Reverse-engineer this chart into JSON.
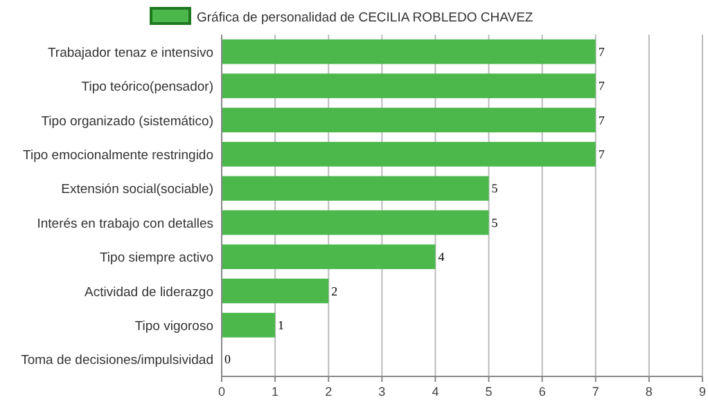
{
  "chart_data": {
    "type": "bar",
    "orientation": "horizontal",
    "categories": [
      "Trabajador tenaz e intensivo",
      "Tipo teórico(pensador)",
      "Tipo organizado (sistemático)",
      "Tipo emocionalmente restringido",
      "Extensión social(sociable)",
      "Interés en trabajo con detalles",
      "Tipo siempre activo",
      "Actividad de liderazgo",
      "Tipo vigoroso",
      "Toma de decisiones/impulsividad"
    ],
    "series": [
      {
        "name": "Gráfica de personalidad de CECILIA ROBLEDO CHAVEZ",
        "color": "#4cb84c",
        "values": [
          7,
          7,
          7,
          7,
          5,
          5,
          4,
          2,
          1,
          0
        ]
      }
    ],
    "xlim": [
      0,
      9
    ],
    "xticks": [
      0,
      1,
      2,
      3,
      4,
      5,
      6,
      7,
      8,
      9
    ],
    "grid": "x",
    "legend": "top",
    "data_labels": true
  }
}
